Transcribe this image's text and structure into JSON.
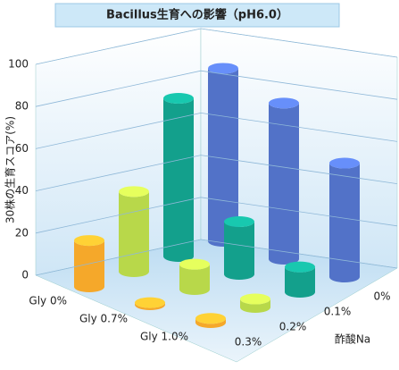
{
  "chart_data": {
    "type": "bar3d",
    "title": "Bacillus生育への影響（pH6.0）",
    "y_label": "30株の生育スコア(%)",
    "depth_label": "酢酸Na",
    "categories": [
      "Gly 0%",
      "Gly 0.7%",
      "Gly 1.0%"
    ],
    "series": [
      {
        "name": "0%",
        "color": "#5272c8",
        "values": [
          82,
          74,
          54
        ]
      },
      {
        "name": "0.1%",
        "color": "#13a08c",
        "values": [
          75,
          25,
          12
        ]
      },
      {
        "name": "0.2%",
        "color": "#b8d84a",
        "values": [
          38,
          12,
          4
        ]
      },
      {
        "name": "0.3%",
        "color": "#f5a82a",
        "values": [
          22,
          1,
          2
        ]
      }
    ],
    "ylim": [
      0,
      100
    ],
    "yticks": [
      0,
      20,
      40,
      60,
      80,
      100
    ],
    "grid": true
  }
}
